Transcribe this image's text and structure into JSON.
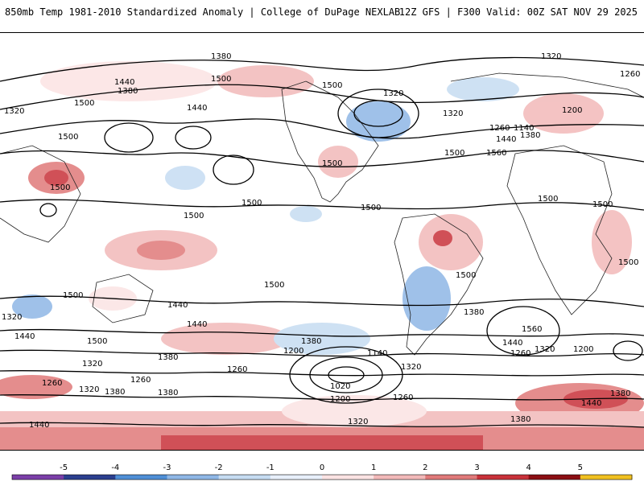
{
  "header": {
    "title": "850mb Temp 1981-2010 Standardized Anomaly | College of DuPage NEXLAB",
    "run_info": "12Z GFS | F300 Valid: 00Z SAT NOV 29 2025"
  },
  "colorbar": {
    "ticks": [
      "-5",
      "-4",
      "-3",
      "-2",
      "-1",
      "0",
      "1",
      "2",
      "3",
      "4",
      "5"
    ],
    "colors": [
      "#7b3fa8",
      "#2b3f8f",
      "#4f8fd6",
      "#8fb7e6",
      "#c6dcf2",
      "#e8f0fb",
      "#fbe3e3",
      "#f2b9b9",
      "#e07a7a",
      "#c8323a",
      "#8c0f14",
      "#f0c020"
    ]
  },
  "contour_labels": [
    "1380",
    "1320",
    "1260",
    "1500",
    "1500",
    "1440",
    "1380",
    "1320",
    "1320",
    "1500",
    "1200",
    "1320",
    "1440",
    "1500",
    "1140",
    "1260",
    "1380",
    "1440",
    "1500",
    "1560",
    "1500",
    "1500",
    "1500",
    "1500",
    "1500",
    "1500",
    "1500",
    "1500",
    "1500",
    "1500",
    "1440",
    "1500",
    "1320",
    "1380",
    "1440",
    "1380",
    "1200",
    "1140",
    "1260",
    "1380",
    "1560",
    "1440",
    "1320",
    "1260",
    "1200",
    "1500",
    "1260",
    "1320",
    "1380",
    "1440",
    "1320",
    "1200",
    "1020",
    "1260",
    "1440",
    "1380",
    "1260",
    "1320",
    "1380",
    "1440",
    "1320",
    "1380"
  ]
}
